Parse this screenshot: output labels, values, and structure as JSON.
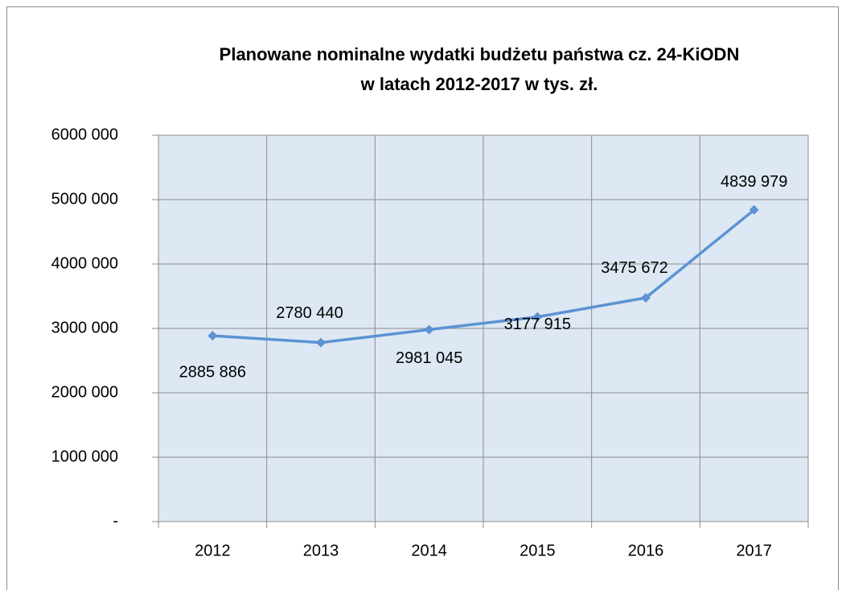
{
  "chart_data": {
    "type": "line",
    "title": [
      "Planowane nominalne wydatki budżetu państwa cz. 24-KiODN",
      "w latach 2012-2017 w tys. zł."
    ],
    "categories": [
      "2012",
      "2013",
      "2014",
      "2015",
      "2016",
      "2017"
    ],
    "values": [
      2885886,
      2780440,
      2981045,
      3177915,
      3475672,
      4839979
    ],
    "value_labels": [
      "2885 886",
      "2780 440",
      "2981 045",
      "3177 915",
      "3475 672",
      "4839 979"
    ],
    "color": "#5b93d3",
    "ylim": [
      0,
      6000000
    ],
    "yticks": [
      {
        "value": 0,
        "label": "-"
      },
      {
        "value": 1000000,
        "label": "1000 000"
      },
      {
        "value": 2000000,
        "label": "2000 000"
      },
      {
        "value": 3000000,
        "label": "3000 000"
      },
      {
        "value": 4000000,
        "label": "4000 000"
      },
      {
        "value": 5000000,
        "label": "5000 000"
      },
      {
        "value": 6000000,
        "label": "6000 000"
      }
    ],
    "grid": true
  }
}
